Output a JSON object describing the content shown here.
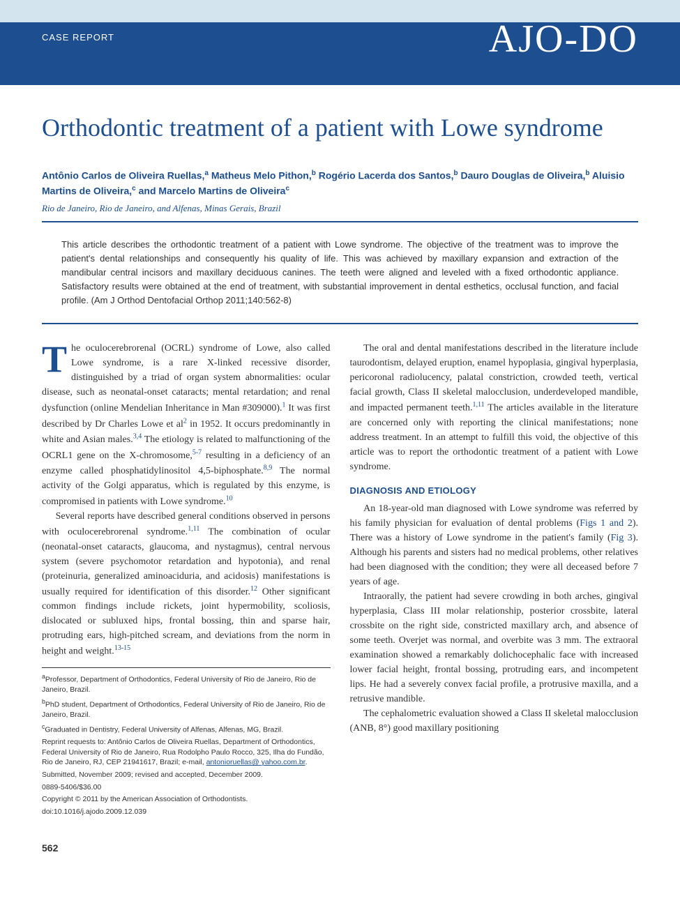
{
  "header": {
    "section_label": "CASE REPORT",
    "journal_logo": "AJO-DO"
  },
  "article": {
    "title": "Orthodontic treatment of a patient with Lowe syndrome",
    "authors_html": "Antônio Carlos de Oliveira Ruellas,<sup>a</sup> Matheus Melo Pithon,<sup>b</sup> Rogério Lacerda dos Santos,<sup>b</sup> Dauro Douglas de Oliveira,<sup>b</sup> Aluisio Martins de Oliveira,<sup>c</sup> and Marcelo Martins de Oliveira<sup>c</sup>",
    "affiliation_line": "Rio de Janeiro, Rio de Janeiro, and Alfenas, Minas Gerais, Brazil",
    "abstract": "This article describes the orthodontic treatment of a patient with Lowe syndrome. The objective of the treatment was to improve the patient's dental relationships and consequently his quality of life. This was achieved by maxillary expansion and extraction of the mandibular central incisors and maxillary deciduous canines. The teeth were aligned and leveled with a fixed orthodontic appliance. Satisfactory results were obtained at the end of treatment, with substantial improvement in dental esthetics, occlusal function, and facial profile. (Am J Orthod Dentofacial Orthop 2011;140:562-8)"
  },
  "body": {
    "p1_dropcap": "T",
    "p1": "he oculocerebrorenal (OCRL) syndrome of Lowe, also called Lowe syndrome, is a rare X-linked recessive disorder, distinguished by a triad of organ system abnormalities: ocular disease, such as neonatal-onset cataracts; mental retardation; and renal dysfunction (online Mendelian Inheritance in Man #309000).<sup class=\"ref\">1</sup> It was first described by Dr Charles Lowe et al<sup class=\"ref\">2</sup> in 1952. It occurs predominantly in white and Asian males.<sup class=\"ref\">3,4</sup> The etiology is related to malfunctioning of the OCRL1 gene on the X-chromosome,<sup class=\"ref\">5-7</sup> resulting in a deficiency of an enzyme called phosphatidylinositol 4,5-biphosphate.<sup class=\"ref\">8,9</sup> The normal activity of the Golgi apparatus, which is regulated by this enzyme, is compromised in patients with Lowe syndrome.<sup class=\"ref\">10</sup>",
    "p2": "Several reports have described general conditions observed in persons with oculocerebrorenal syndrome.<sup class=\"ref\">1,11</sup> The combination of ocular (neonatal-onset cataracts, glaucoma, and nystagmus), central nervous system (severe psychomotor retardation and hypotonia), and renal (proteinuria, generalized aminoaciduria, and acidosis) manifestations is usually required for identification of this disorder.<sup class=\"ref\">12</sup> Other significant common findings include rickets, joint hypermobility, scoliosis, dislocated or subluxed hips, frontal bossing, thin and sparse hair, protruding ears, high-pitched scream, and deviations from the norm in height and weight.<sup class=\"ref\">13-15</sup>",
    "p3": "The oral and dental manifestations described in the literature include taurodontism, delayed eruption, enamel hypoplasia, gingival hyperplasia, pericoronal radiolucency, palatal constriction, crowded teeth, vertical facial growth, Class II skeletal malocclusion, underdeveloped mandible, and impacted permanent teeth.<sup class=\"ref\">1,11</sup> The articles available in the literature are concerned only with reporting the clinical manifestations; none address treatment. In an attempt to fulfill this void, the objective of this article was to report the orthodontic treatment of a patient with Lowe syndrome.",
    "section_heading": "DIAGNOSIS AND ETIOLOGY",
    "p4": "An 18-year-old man diagnosed with Lowe syndrome was referred by his family physician for evaluation of dental problems (<span class=\"figlink\">Figs 1 and 2</span>). There was a history of Lowe syndrome in the patient's family (<span class=\"figlink\">Fig 3</span>). Although his parents and sisters had no medical problems, other relatives had been diagnosed with the condition; they were all deceased before 7 years of age.",
    "p5": "Intraorally, the patient had severe crowding in both arches, gingival hyperplasia, Class III molar relationship, posterior crossbite, lateral crossbite on the right side, constricted maxillary arch, and absence of some teeth. Overjet was normal, and overbite was 3 mm. The extraoral examination showed a remarkably dolichocephalic face with increased lower facial height, frontal bossing, protruding ears, and incompetent lips. He had a severely convex facial profile, a protrusive maxilla, and a retrusive mandible.",
    "p6": "The cephalometric evaluation showed a Class II skeletal malocclusion (ANB, 8°) good maxillary positioning"
  },
  "footnotes": {
    "a": "Professor, Department of Orthodontics, Federal University of Rio de Janeiro, Rio de Janeiro, Brazil.",
    "b": "PhD student, Department of Orthodontics, Federal University of Rio de Janeiro, Rio de Janeiro, Brazil.",
    "c": "Graduated in Dentistry, Federal University of Alfenas, Alfenas, MG, Brazil.",
    "reprint": "Reprint requests to: Antônio Carlos de Oliveira Ruellas, Department of Orthodontics, Federal University of Rio de Janeiro, Rua Rodolpho Paulo Rocco, 325, Ilha do Fundão, Rio de Janeiro, RJ, CEP 21941617, Brazil; e-mail, ",
    "email1": "antonioruellas@",
    "email2": "yahoo.com.br",
    "submitted": "Submitted, November 2009; revised and accepted, December 2009.",
    "issn": "0889-5406/$36.00",
    "copyright": "Copyright © 2011 by the American Association of Orthodontists.",
    "doi": "doi:10.1016/j.ajodo.2009.12.039"
  },
  "page_number": "562",
  "colors": {
    "top_stripe": "#d4e4ee",
    "brand": "#1d4e8f",
    "text": "#333333",
    "background": "#ffffff"
  }
}
